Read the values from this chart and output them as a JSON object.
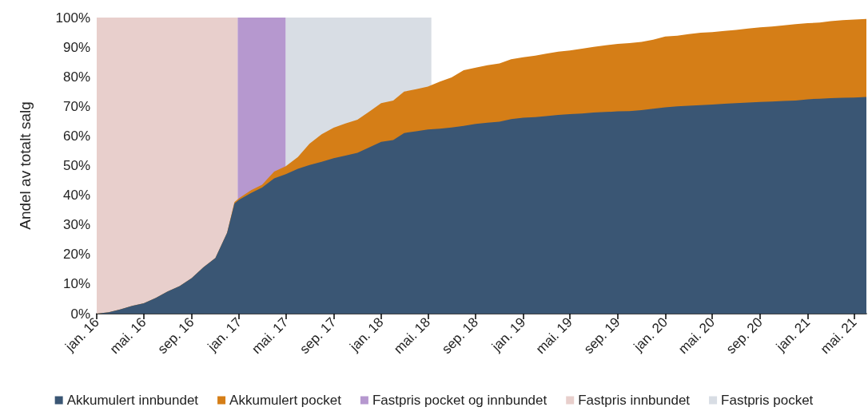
{
  "chart_data": {
    "type": "area",
    "ylabel": "Andel av totalt salg",
    "stacked": true,
    "grid": false,
    "legend": "bottom",
    "x": [
      "2016-01",
      "2016-02",
      "2016-03",
      "2016-04",
      "2016-05",
      "2016-06",
      "2016-07",
      "2016-08",
      "2016-09",
      "2016-10",
      "2016-11",
      "2016-12",
      "2016-12-20",
      "2017-01",
      "2017-02",
      "2017-03",
      "2017-04",
      "2017-05",
      "2017-06",
      "2017-07",
      "2017-08",
      "2017-09",
      "2017-10",
      "2017-11",
      "2017-12",
      "2018-01",
      "2018-02",
      "2018-03",
      "2018-04",
      "2018-05",
      "2018-06",
      "2018-07",
      "2018-08",
      "2018-09",
      "2018-10",
      "2018-11",
      "2018-12",
      "2019-01",
      "2019-02",
      "2019-03",
      "2019-04",
      "2019-05",
      "2019-06",
      "2019-07",
      "2019-08",
      "2019-09",
      "2019-10",
      "2019-11",
      "2019-12",
      "2020-01",
      "2020-02",
      "2020-03",
      "2020-04",
      "2020-05",
      "2020-06",
      "2020-07",
      "2020-08",
      "2020-09",
      "2020-10",
      "2020-11",
      "2020-12",
      "2021-01",
      "2021-02",
      "2021-03",
      "2021-04",
      "2021-05",
      "2021-06"
    ],
    "series": [
      {
        "name": "Akkumulert innbundet",
        "color": "#3a5674",
        "values": [
          0,
          0.5,
          1.4,
          2.6,
          3.5,
          5.3,
          7.5,
          9.3,
          12,
          15.6,
          18.8,
          27.3,
          37.2,
          38.5,
          40.8,
          42.6,
          45.7,
          47.1,
          48.9,
          50.2,
          51.3,
          52.5,
          53.4,
          54.3,
          56.1,
          58,
          58.6,
          61,
          61.6,
          62.2,
          62.5,
          62.9,
          63.4,
          64.1,
          64.5,
          64.8,
          65.7,
          66.2,
          66.4,
          66.7,
          67.1,
          67.4,
          67.6,
          67.9,
          68.1,
          68.3,
          68.4,
          68.7,
          69.2,
          69.7,
          70,
          70.2,
          70.4,
          70.6,
          70.9,
          71.1,
          71.3,
          71.5,
          71.6,
          71.8,
          72,
          72.4,
          72.6,
          72.8,
          72.9,
          73,
          73.2
        ]
      },
      {
        "name": "Akkumulert pocket",
        "color": "#d57e17",
        "values": [
          0,
          0,
          0,
          0,
          0,
          0,
          0,
          0,
          0,
          0,
          0,
          0,
          0.5,
          0.5,
          0.9,
          0.9,
          2.3,
          2.7,
          4,
          7.2,
          9.3,
          10.3,
          10.8,
          11.2,
          12.1,
          13.1,
          13.4,
          14,
          14.2,
          14.5,
          15.9,
          16.9,
          18.8,
          19,
          19.4,
          19.7,
          20.2,
          20.4,
          20.7,
          21.1,
          21.4,
          21.5,
          21.9,
          22.2,
          22.5,
          22.8,
          23,
          23.1,
          23.3,
          23.9,
          23.9,
          24.2,
          24.5,
          24.5,
          24.6,
          24.7,
          25,
          25.2,
          25.4,
          25.6,
          25.8,
          25.7,
          25.7,
          26,
          26.2,
          26.3,
          26.3
        ]
      }
    ],
    "bands": [
      {
        "axis": "x",
        "from": "2016-12-28",
        "to": "2017-05",
        "label": "Fastpris pocket og innbundet",
        "color": "#b698cf"
      },
      {
        "axis": "x",
        "from": "2016-01",
        "to": "2016-12-28",
        "label": "Fastpris innbundet",
        "color": "#e8cfcc"
      },
      {
        "axis": "x",
        "from": "2017-05",
        "to": "2018-05-10",
        "label": "Fastpris pocket",
        "color": "#d8dde4"
      }
    ],
    "xlim": [
      "2016-01",
      "2021-06"
    ],
    "xticks": [
      {
        "value": "2016-01",
        "label": "jan. 16"
      },
      {
        "value": "2016-05",
        "label": "mai. 16"
      },
      {
        "value": "2016-09",
        "label": "sep. 16"
      },
      {
        "value": "2017-01",
        "label": "jan. 17"
      },
      {
        "value": "2017-05",
        "label": "mai. 17"
      },
      {
        "value": "2017-09",
        "label": "sep. 17"
      },
      {
        "value": "2018-01",
        "label": "jan. 18"
      },
      {
        "value": "2018-05",
        "label": "mai. 18"
      },
      {
        "value": "2018-09",
        "label": "sep. 18"
      },
      {
        "value": "2019-01",
        "label": "jan. 19"
      },
      {
        "value": "2019-05",
        "label": "mai. 19"
      },
      {
        "value": "2019-09",
        "label": "sep. 19"
      },
      {
        "value": "2020-01",
        "label": "jan. 20"
      },
      {
        "value": "2020-05",
        "label": "mai. 20"
      },
      {
        "value": "2020-09",
        "label": "sep. 20"
      },
      {
        "value": "2021-01",
        "label": "jan. 21"
      },
      {
        "value": "2021-05",
        "label": "mai. 21"
      }
    ],
    "ylim": [
      0,
      100
    ],
    "yticks": [
      {
        "value": 0,
        "label": "0%"
      },
      {
        "value": 10,
        "label": "10%"
      },
      {
        "value": 20,
        "label": "20%"
      },
      {
        "value": 30,
        "label": "30%"
      },
      {
        "value": 40,
        "label": "40%"
      },
      {
        "value": 50,
        "label": "50%"
      },
      {
        "value": 60,
        "label": "60%"
      },
      {
        "value": 70,
        "label": "70%"
      },
      {
        "value": 80,
        "label": "80%"
      },
      {
        "value": 90,
        "label": "90%"
      },
      {
        "value": 100,
        "label": "100%"
      }
    ]
  }
}
